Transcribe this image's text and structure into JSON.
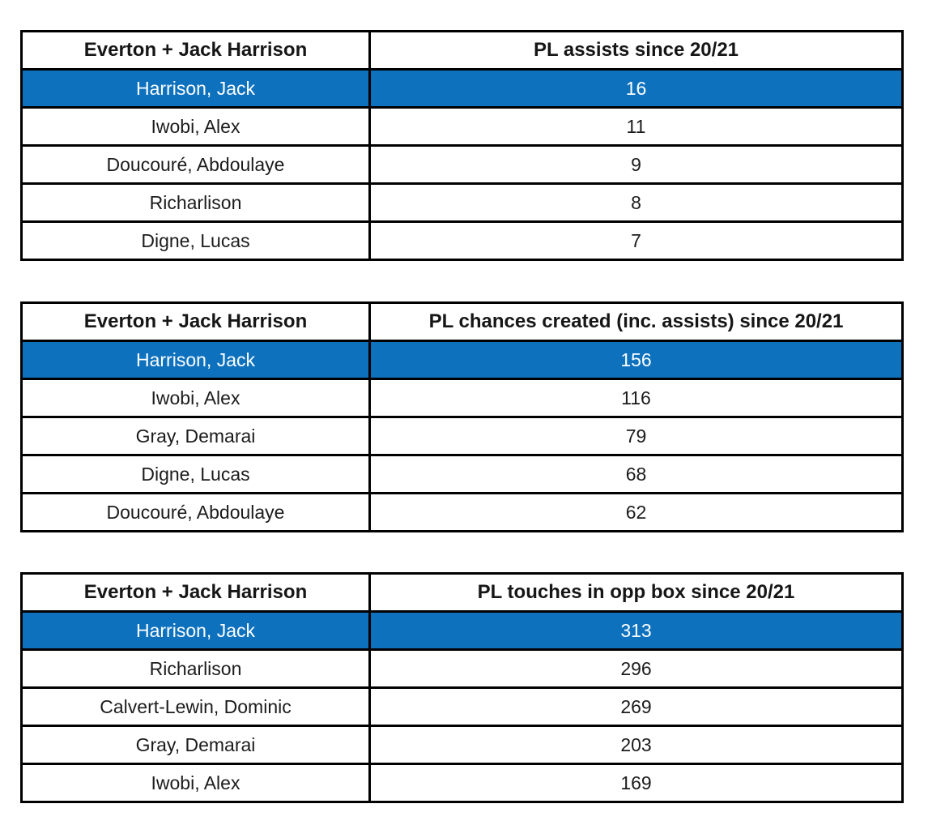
{
  "colors": {
    "highlight_blue": "#0e71bd",
    "highlight_text": "#ffffff",
    "border": "#000000",
    "text": "#161616",
    "background": "#ffffff"
  },
  "chart_data": [
    {
      "type": "table",
      "title": "PL assists since 20/21",
      "columns": [
        "Everton + Jack Harrison",
        "PL assists since 20/21"
      ],
      "highlighted_row": "Harrison, Jack",
      "rows": [
        {
          "player": "Harrison, Jack",
          "value": "16",
          "highlighted": true
        },
        {
          "player": "Iwobi, Alex",
          "value": "11",
          "highlighted": false
        },
        {
          "player": "Doucouré, Abdoulaye",
          "value": "9",
          "highlighted": false
        },
        {
          "player": "Richarlison",
          "value": "8",
          "highlighted": false
        },
        {
          "player": "Digne, Lucas",
          "value": "7",
          "highlighted": false
        }
      ]
    },
    {
      "type": "table",
      "title": "PL chances created (inc. assists) since 20/21",
      "columns": [
        "Everton + Jack Harrison",
        "PL chances created (inc. assists) since 20/21"
      ],
      "highlighted_row": "Harrison, Jack",
      "rows": [
        {
          "player": "Harrison, Jack",
          "value": "156",
          "highlighted": true
        },
        {
          "player": "Iwobi, Alex",
          "value": "116",
          "highlighted": false
        },
        {
          "player": "Gray, Demarai",
          "value": "79",
          "highlighted": false
        },
        {
          "player": "Digne, Lucas",
          "value": "68",
          "highlighted": false
        },
        {
          "player": "Doucouré, Abdoulaye",
          "value": "62",
          "highlighted": false
        }
      ]
    },
    {
      "type": "table",
      "title": "PL touches in opp box since 20/21",
      "columns": [
        "Everton + Jack Harrison",
        "PL touches in opp box since 20/21"
      ],
      "highlighted_row": "Harrison, Jack",
      "rows": [
        {
          "player": "Harrison, Jack",
          "value": "313",
          "highlighted": true
        },
        {
          "player": "Richarlison",
          "value": "296",
          "highlighted": false
        },
        {
          "player": "Calvert-Lewin, Dominic",
          "value": "269",
          "highlighted": false
        },
        {
          "player": "Gray, Demarai",
          "value": "203",
          "highlighted": false
        },
        {
          "player": "Iwobi, Alex",
          "value": "169",
          "highlighted": false
        }
      ]
    }
  ]
}
